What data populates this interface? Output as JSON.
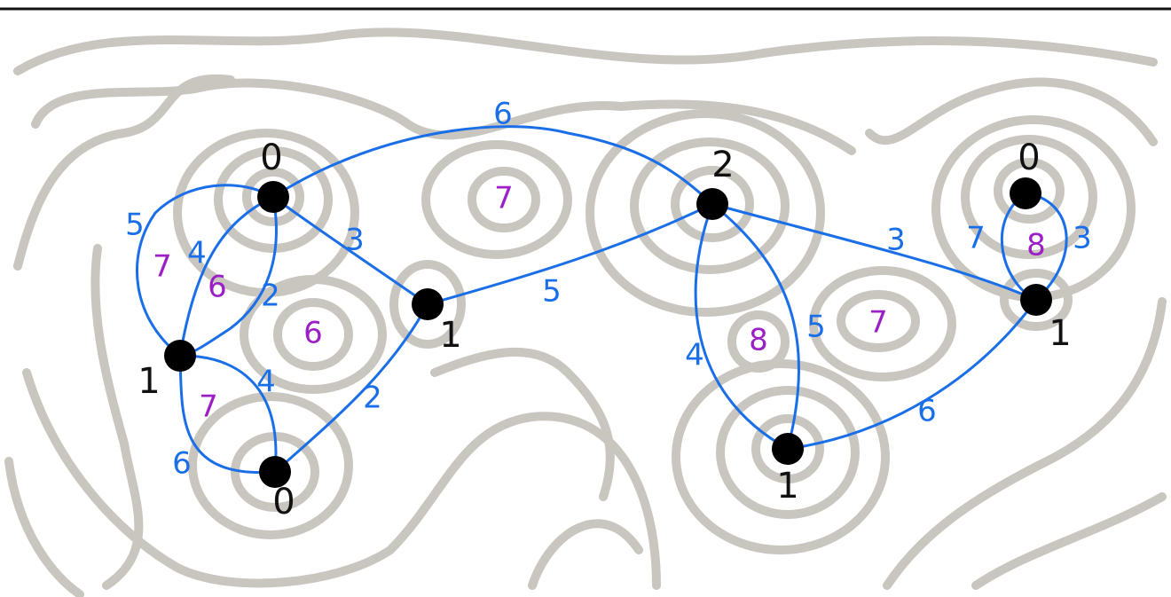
{
  "nodes": [
    {
      "label": "0"
    },
    {
      "label": "1"
    },
    {
      "label": "0"
    },
    {
      "label": "1"
    },
    {
      "label": "2"
    },
    {
      "label": "1"
    },
    {
      "label": "0"
    },
    {
      "label": "1"
    }
  ],
  "edges": [
    {
      "label": "6"
    },
    {
      "label": "3"
    },
    {
      "label": "5"
    },
    {
      "label": "4"
    },
    {
      "label": "2"
    },
    {
      "label": "5"
    },
    {
      "label": "2"
    },
    {
      "label": "4"
    },
    {
      "label": "6"
    },
    {
      "label": "3"
    },
    {
      "label": "4"
    },
    {
      "label": "5"
    },
    {
      "label": "6"
    },
    {
      "label": "7"
    },
    {
      "label": "3"
    }
  ],
  "faces": [
    {
      "label": "7"
    },
    {
      "label": "7"
    },
    {
      "label": "6"
    },
    {
      "label": "6"
    },
    {
      "label": "7"
    },
    {
      "label": "8"
    },
    {
      "label": "7"
    },
    {
      "label": "8"
    }
  ]
}
